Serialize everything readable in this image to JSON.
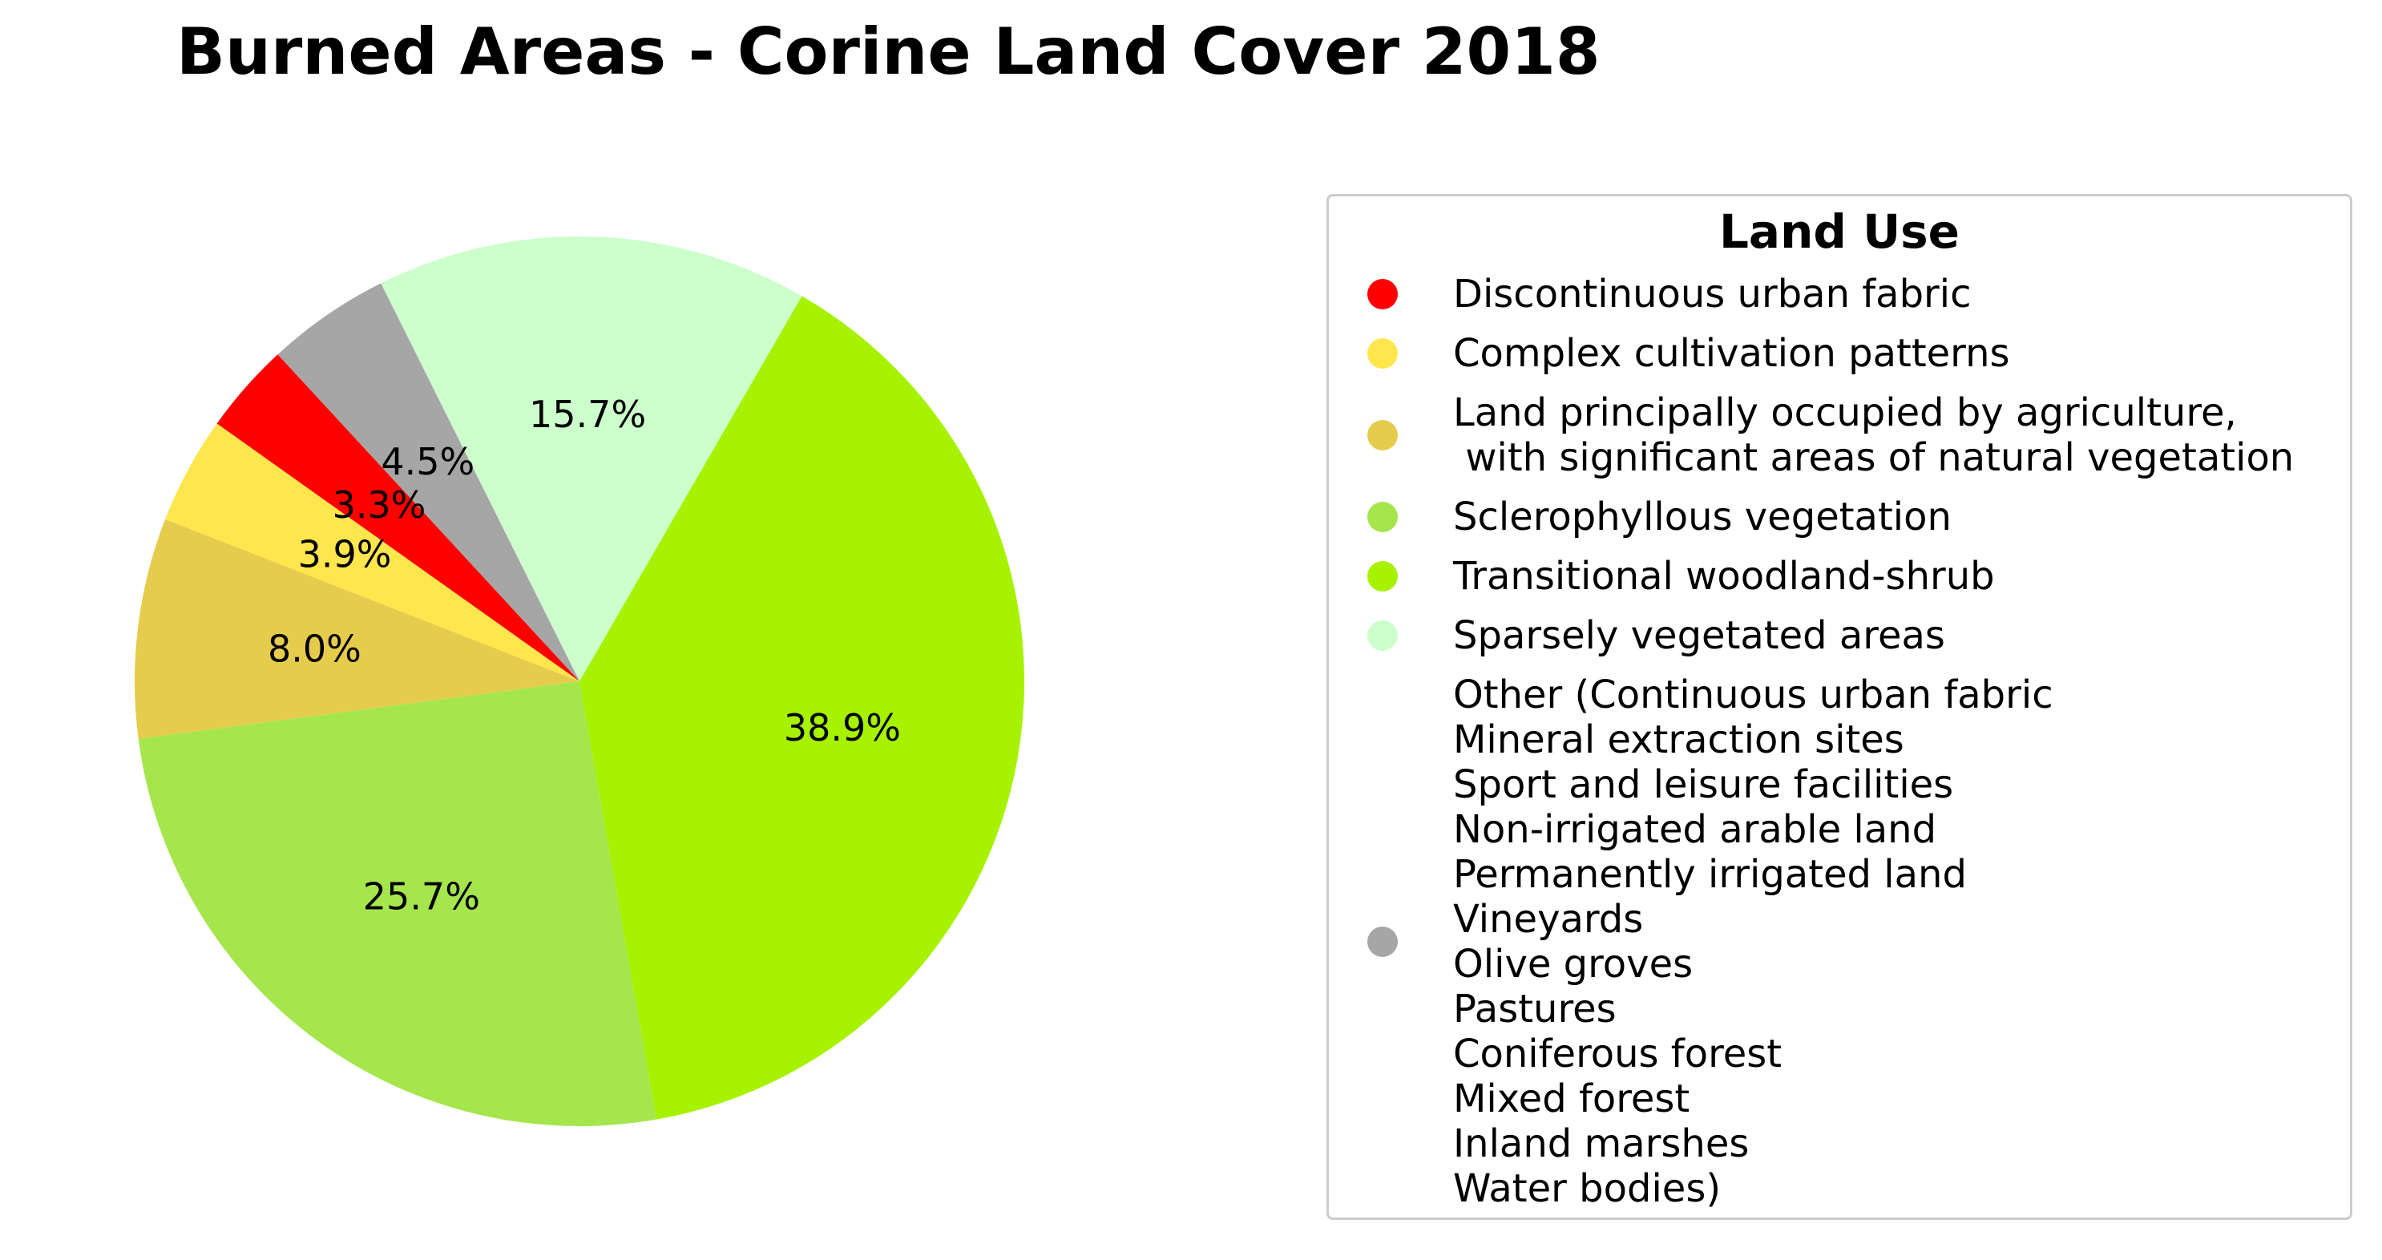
{
  "chart_data": {
    "type": "pie",
    "title": "Burned Areas - Corine Land Cover 2018",
    "legend_title": "Land Use",
    "legend_placement": "right",
    "slices": [
      {
        "label": "Sparsely vegetated areas",
        "value": 15.7,
        "pct_label": "15.7%",
        "color": "#ccffcc"
      },
      {
        "label": "Other (Continuous urban fabric\nMineral extraction sites\nSport and leisure facilities\nNon-irrigated arable land\nPermanently irrigated land\nVineyards\nOlive groves\nPastures\nConiferous forest\nMixed forest\nInland marshes\nWater bodies)",
        "value": 4.5,
        "pct_label": "4.5%",
        "color": "#a6a6a6"
      },
      {
        "label": "Discontinuous urban fabric",
        "value": 3.3,
        "pct_label": "3.3%",
        "color": "#ff0000"
      },
      {
        "label": "Complex cultivation patterns",
        "value": 3.9,
        "pct_label": "3.9%",
        "color": "#ffe64d"
      },
      {
        "label": "Land principally occupied by agriculture,\n with significant areas of natural vegetation",
        "value": 8.0,
        "pct_label": "8.0%",
        "color": "#e6cc4d"
      },
      {
        "label": "Sclerophyllous vegetation",
        "value": 25.7,
        "pct_label": "25.7%",
        "color": "#a6e64d"
      },
      {
        "label": "Transitional woodland-shrub",
        "value": 38.9,
        "pct_label": "38.9%",
        "color": "#a6f200"
      }
    ],
    "legend_order": [
      "Discontinuous urban fabric",
      "Complex cultivation patterns",
      "Land principally occupied by agriculture,\n with significant areas of natural vegetation",
      "Sclerophyllous vegetation",
      "Transitional woodland-shrub",
      "Sparsely vegetated areas",
      "Other (Continuous urban fabric\nMineral extraction sites\nSport and leisure facilities\nNon-irrigated arable land\nPermanently irrigated land\nVineyards\nOlive groves\nPastures\nConiferous forest\nMixed forest\nInland marshes\nWater bodies)"
    ]
  }
}
